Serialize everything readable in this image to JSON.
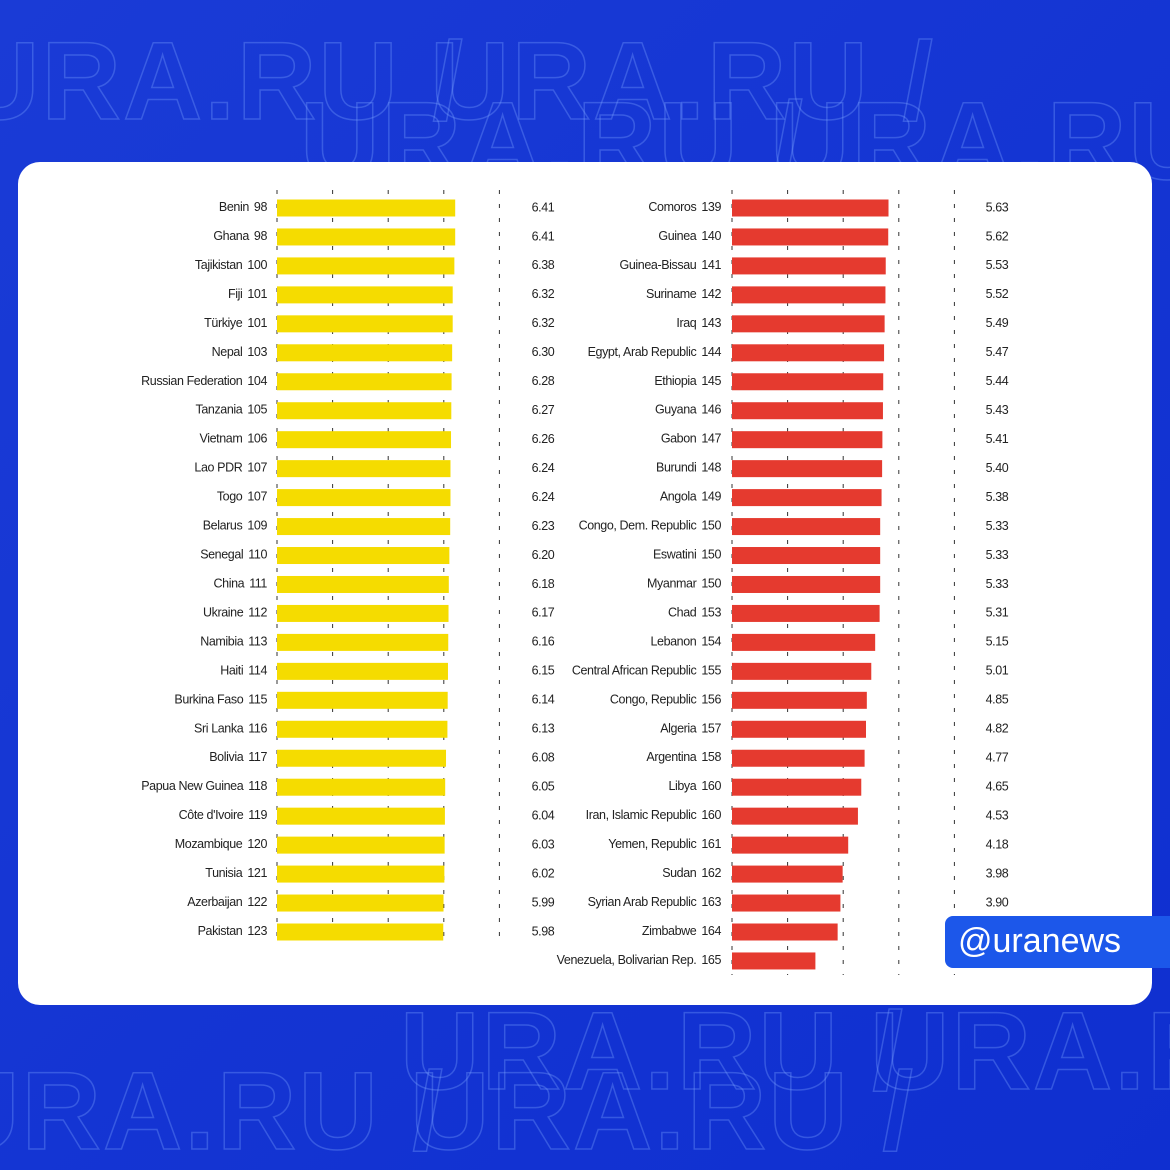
{
  "background_text": "URA.RU /",
  "watermark": "@uranews",
  "chart_data": [
    {
      "type": "bar",
      "orientation": "horizontal",
      "color": "#f5dc00",
      "categories": [
        "Benin",
        "Ghana",
        "Tajikistan",
        "Fiji",
        "Türkiye",
        "Nepal",
        "Russian Federation",
        "Tanzania",
        "Vietnam",
        "Lao PDR",
        "Togo",
        "Belarus",
        "Senegal",
        "China",
        "Ukraine",
        "Namibia",
        "Haiti",
        "Burkina Faso",
        "Sri Lanka",
        "Bolivia",
        "Papua New Guinea",
        "Côte d'Ivoire",
        "Mozambique",
        "Tunisia",
        "Azerbaijan",
        "Pakistan"
      ],
      "ranks": [
        98,
        98,
        100,
        101,
        101,
        103,
        104,
        105,
        106,
        107,
        107,
        109,
        110,
        111,
        112,
        113,
        114,
        115,
        116,
        117,
        118,
        119,
        120,
        121,
        122,
        123
      ],
      "values": [
        6.41,
        6.41,
        6.38,
        6.32,
        6.32,
        6.3,
        6.28,
        6.27,
        6.26,
        6.24,
        6.24,
        6.23,
        6.2,
        6.18,
        6.17,
        6.16,
        6.15,
        6.14,
        6.13,
        6.08,
        6.05,
        6.04,
        6.03,
        6.02,
        5.99,
        5.98
      ],
      "value_labels": [
        "6.41",
        "6.41",
        "6.38",
        "6.32",
        "6.32",
        "6.30",
        "6.28",
        "6.27",
        "6.26",
        "6.24",
        "6.24",
        "6.23",
        "6.20",
        "6.18",
        "6.17",
        "6.16",
        "6.15",
        "6.14",
        "6.13",
        "6.08",
        "6.05",
        "6.04",
        "6.03",
        "6.02",
        "5.99",
        "5.98"
      ],
      "xlim": [
        0,
        8
      ],
      "xticks": [
        0,
        2,
        4,
        6,
        8
      ]
    },
    {
      "type": "bar",
      "orientation": "horizontal",
      "color": "#e53a2f",
      "categories": [
        "Comoros",
        "Guinea",
        "Guinea-Bissau",
        "Suriname",
        "Iraq",
        "Egypt, Arab Republic",
        "Ethiopia",
        "Guyana",
        "Gabon",
        "Burundi",
        "Angola",
        "Congo, Dem. Republic",
        "Eswatini",
        "Myanmar",
        "Chad",
        "Lebanon",
        "Central African Republic",
        "Congo, Republic",
        "Algeria",
        "Argentina",
        "Libya",
        "Iran, Islamic Republic",
        "Yemen, Republic",
        "Sudan",
        "Syrian Arab Republic",
        "Zimbabwe",
        "Venezuela, Bolivarian Rep."
      ],
      "ranks": [
        139,
        140,
        141,
        142,
        143,
        144,
        145,
        146,
        147,
        148,
        149,
        150,
        150,
        150,
        153,
        154,
        155,
        156,
        157,
        158,
        160,
        160,
        161,
        162,
        163,
        164,
        165
      ],
      "values": [
        5.63,
        5.62,
        5.53,
        5.52,
        5.49,
        5.47,
        5.44,
        5.43,
        5.41,
        5.4,
        5.38,
        5.33,
        5.33,
        5.33,
        5.31,
        5.15,
        5.01,
        4.85,
        4.82,
        4.77,
        4.65,
        4.53,
        4.18,
        3.98,
        3.9,
        3.8,
        3.0
      ],
      "value_labels": [
        "5.63",
        "5.62",
        "5.53",
        "5.52",
        "5.49",
        "5.47",
        "5.44",
        "5.43",
        "5.41",
        "5.40",
        "5.38",
        "5.33",
        "5.33",
        "5.33",
        "5.31",
        "5.15",
        "5.01",
        "4.85",
        "4.82",
        "4.77",
        "4.65",
        "4.53",
        "4.18",
        "3.98",
        "3.90",
        null,
        null
      ],
      "xlim": [
        0,
        8
      ],
      "xticks": [
        0,
        2,
        4,
        6,
        8
      ]
    }
  ]
}
